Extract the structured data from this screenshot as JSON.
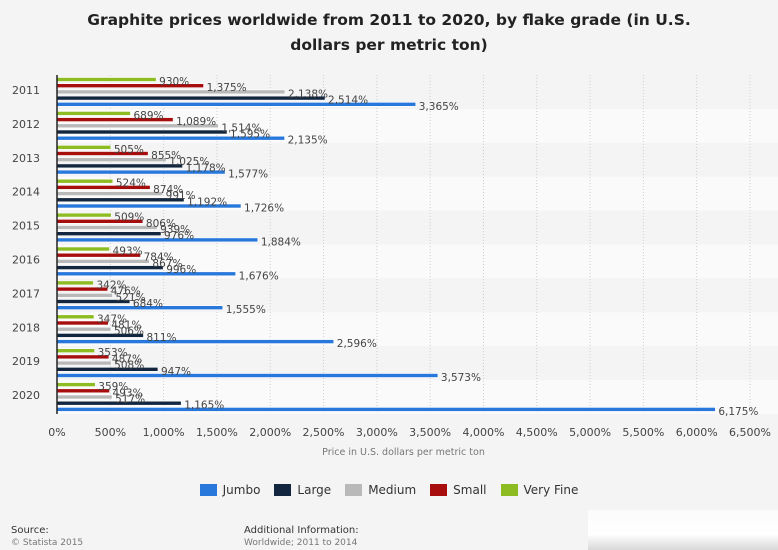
{
  "chart_data": {
    "type": "bar",
    "orientation": "horizontal",
    "title": "Graphite prices worldwide from 2011 to 2020, by flake grade (in U.S. dollars per metric ton)",
    "xlabel": "Price in U.S. dollars per metric ton",
    "ylabel": "",
    "xlim": [
      0,
      6500
    ],
    "x_ticks": [
      "0%",
      "500%",
      "1,000%",
      "1,500%",
      "2,000%",
      "2,500%",
      "3,000%",
      "3,500%",
      "4,000%",
      "4,500%",
      "5,000%",
      "5,500%",
      "6,000%",
      "6,500%"
    ],
    "grid": true,
    "legend_position": "bottom",
    "categories": [
      "2011",
      "2012",
      "2013",
      "2014",
      "2015",
      "2016",
      "2017",
      "2018",
      "2019",
      "2020"
    ],
    "series": [
      {
        "name": "Very Fine",
        "color": "#8cbc22",
        "values": [
          930,
          689,
          505,
          524,
          509,
          493,
          342,
          347,
          353,
          359
        ],
        "labels": [
          "930%",
          "689%",
          "505%",
          "524%",
          "509%",
          "493%",
          "342%",
          "347%",
          "353%",
          "359%"
        ]
      },
      {
        "name": "Small",
        "color": "#a80d0d",
        "values": [
          1375,
          1089,
          855,
          874,
          806,
          784,
          476,
          481,
          487,
          493
        ],
        "labels": [
          "1,375%",
          "1,089%",
          "855%",
          "874%",
          "806%",
          "784%",
          "476%",
          "481%",
          "487%",
          "493%"
        ]
      },
      {
        "name": "Medium",
        "color": "#b9b9b9",
        "values": [
          2138,
          1514,
          1025,
          991,
          939,
          867,
          521,
          506,
          508,
          517
        ],
        "labels": [
          "2,138%",
          "1,514%",
          "1,025%",
          "991%",
          "939%",
          "867%",
          "521%",
          "506%",
          "508%",
          "517%"
        ]
      },
      {
        "name": "Large",
        "color": "#13263f",
        "values": [
          2514,
          1595,
          1178,
          1192,
          976,
          996,
          684,
          811,
          947,
          1165
        ],
        "labels": [
          "2,514%",
          "1,595%",
          "1,178%",
          "1,192%",
          "976%",
          "996%",
          "684%",
          "811%",
          "947%",
          "1,165%"
        ]
      },
      {
        "name": "Jumbo",
        "color": "#2878dc",
        "values": [
          3365,
          2135,
          1577,
          1726,
          1884,
          1676,
          1555,
          2596,
          3573,
          6175
        ],
        "labels": [
          "3,365%",
          "2,135%",
          "1,577%",
          "1,726%",
          "1,884%",
          "1,676%",
          "1,555%",
          "2,596%",
          "3,573%",
          "6,175%"
        ]
      }
    ]
  },
  "legend": [
    {
      "label": "Jumbo",
      "color": "#2878dc"
    },
    {
      "label": "Large",
      "color": "#13263f"
    },
    {
      "label": "Medium",
      "color": "#b9b9b9"
    },
    {
      "label": "Small",
      "color": "#a80d0d"
    },
    {
      "label": "Very Fine",
      "color": "#8cbc22"
    }
  ],
  "footer": {
    "source_label": "Source:",
    "source_value": "© Statista 2015",
    "info_label": "Additional Information:",
    "info_value": "Worldwide; 2011 to 2014"
  }
}
